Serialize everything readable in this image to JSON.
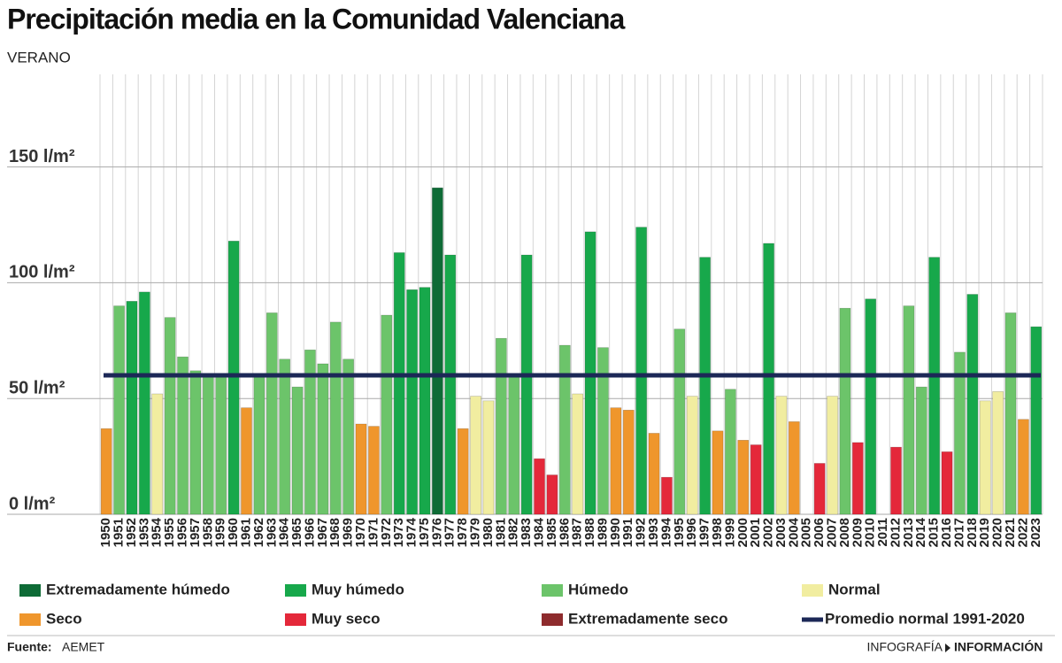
{
  "chart_data": {
    "type": "bar",
    "title": "Precipitación media en la Comunidad Valenciana",
    "subtitle": "VERANO",
    "categories": [
      "1950",
      "1951",
      "1952",
      "1953",
      "1954",
      "1955",
      "1956",
      "1957",
      "1958",
      "1959",
      "1960",
      "1961",
      "1962",
      "1963",
      "1964",
      "1965",
      "1966",
      "1967",
      "1968",
      "1969",
      "1970",
      "1971",
      "1972",
      "1973",
      "1974",
      "1975",
      "1976",
      "1977",
      "1978",
      "1979",
      "1980",
      "1981",
      "1982",
      "1983",
      "1984",
      "1985",
      "1986",
      "1987",
      "1988",
      "1989",
      "1990",
      "1991",
      "1992",
      "1993",
      "1994",
      "1995",
      "1996",
      "1997",
      "1998",
      "1999",
      "2000",
      "2001",
      "2002",
      "2003",
      "2004",
      "2005",
      "2006",
      "2007",
      "2008",
      "2009",
      "2010",
      "2011",
      "2012",
      "2013",
      "2014",
      "2015",
      "2016",
      "2017",
      "2018",
      "2019",
      "2020",
      "2021",
      "2022",
      "2023"
    ],
    "values": [
      37,
      90,
      92,
      96,
      52,
      85,
      68,
      62,
      60,
      60,
      118,
      46,
      60,
      87,
      67,
      55,
      71,
      65,
      83,
      67,
      39,
      38,
      86,
      113,
      97,
      98,
      141,
      112,
      37,
      51,
      49,
      76,
      60,
      112,
      24,
      17,
      73,
      52,
      122,
      72,
      46,
      45,
      124,
      35,
      16,
      80,
      51,
      111,
      36,
      54,
      32,
      30,
      117,
      51,
      40,
      null,
      22,
      51,
      89,
      31,
      93,
      null,
      29,
      90,
      55,
      111,
      27,
      70,
      95,
      49,
      53,
      87,
      41,
      81
    ],
    "bar_class": [
      4,
      2,
      1,
      1,
      3,
      2,
      2,
      2,
      2,
      2,
      1,
      4,
      2,
      2,
      2,
      2,
      2,
      2,
      2,
      2,
      4,
      4,
      2,
      1,
      1,
      1,
      0,
      1,
      4,
      3,
      3,
      2,
      2,
      1,
      5,
      5,
      2,
      3,
      1,
      2,
      4,
      4,
      1,
      4,
      5,
      2,
      3,
      1,
      4,
      2,
      4,
      5,
      1,
      3,
      4,
      null,
      5,
      3,
      2,
      5,
      1,
      null,
      5,
      2,
      2,
      1,
      5,
      2,
      1,
      3,
      3,
      2,
      4,
      1
    ],
    "classes": [
      {
        "name": "Extremadamente húmedo",
        "color": "#0e6b36"
      },
      {
        "name": "Muy húmedo",
        "color": "#17a84b"
      },
      {
        "name": "Húmedo",
        "color": "#6cc46a"
      },
      {
        "name": "Normal",
        "color": "#f1eda0"
      },
      {
        "name": "Seco",
        "color": "#ef962c"
      },
      {
        "name": "Muy seco",
        "color": "#e4283a"
      },
      {
        "name": "Extremadamente seco",
        "color": "#8e2b2d"
      }
    ],
    "average": 60,
    "average_label": "Promedio normal 1991-2020",
    "average_color": "#1c2857",
    "ylim": [
      0,
      190
    ],
    "yticks": [
      {
        "value": 0,
        "label": "0 l/m²"
      },
      {
        "value": 50,
        "label": "50 l/m²"
      },
      {
        "value": 100,
        "label": "100 l/m²"
      },
      {
        "value": 150,
        "label": "150 l/m²"
      }
    ],
    "grid": true
  },
  "footer": {
    "source_label": "Fuente:",
    "source": "AEMET",
    "credit_left": "INFOGRAFÍA",
    "credit_right": "INFORMACIÓN"
  }
}
